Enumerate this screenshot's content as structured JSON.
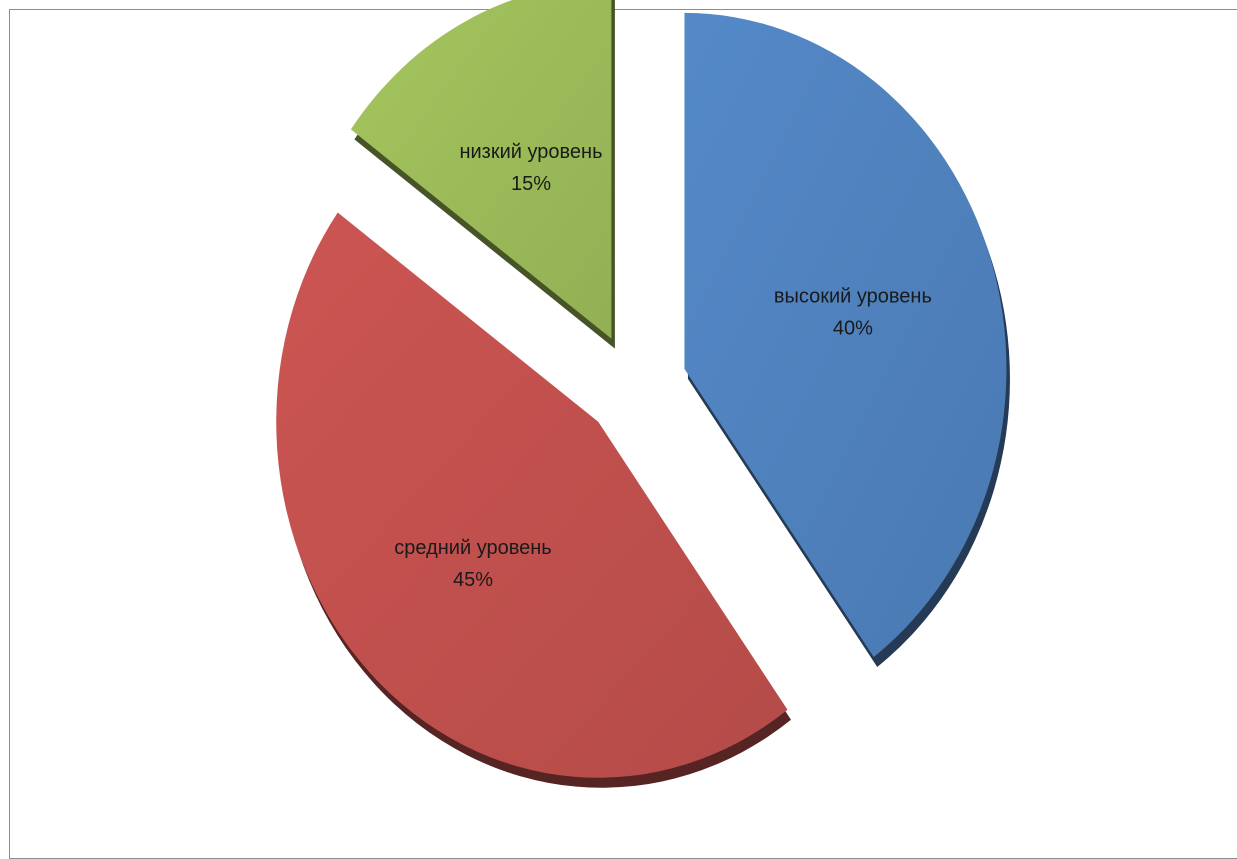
{
  "chart_data": {
    "type": "pie",
    "style": "3d-exploded",
    "slices": [
      {
        "label": "высокий уровень",
        "value": 40,
        "value_label": "40%",
        "color": "#4f81bd"
      },
      {
        "label": "средний уровень",
        "value": 45,
        "value_label": "45%",
        "color": "#c0504d"
      },
      {
        "label": "низкий уровень",
        "value": 15,
        "value_label": "15%",
        "color": "#9bbb59"
      }
    ],
    "legend": "none"
  }
}
